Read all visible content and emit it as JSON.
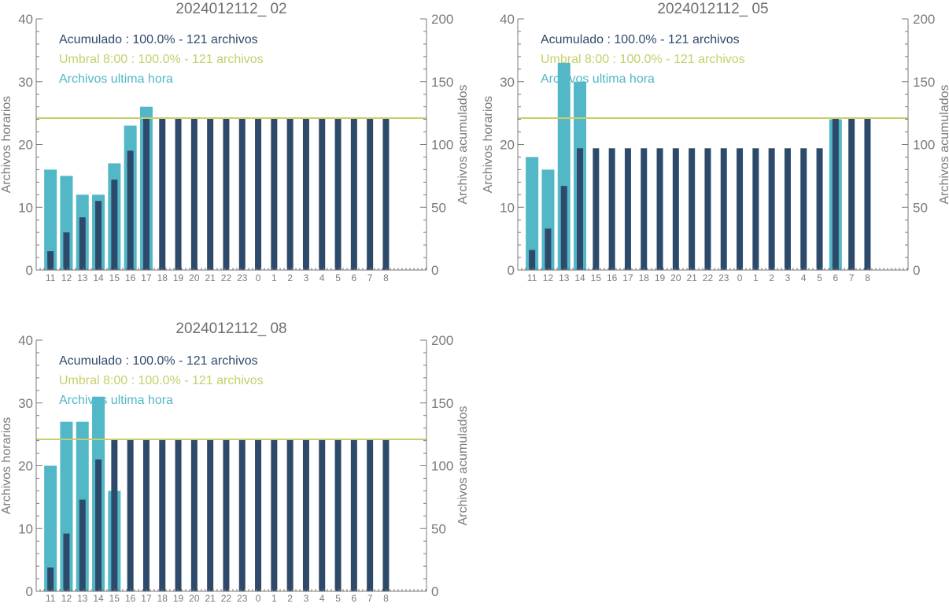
{
  "colors": {
    "accumulated": "#2e4a6b",
    "hourly": "#52b7c6",
    "threshold": "#c6cf6a",
    "axis": "#7a7a7a",
    "title": "#6f6f6f"
  },
  "legend_labels": {
    "accumulated": "Acumulado : 100.0% - 121 archivos",
    "threshold": "Umbral 8:00 : 100.0% - 121 archivos",
    "hourly": "Archivos ultima hora"
  },
  "axis_labels": {
    "left": "Archivos horarios",
    "right": "Archivos acumulados"
  },
  "chart_data": [
    {
      "type": "bar",
      "title": "2024012112_ 02",
      "categories": [
        "11",
        "12",
        "13",
        "14",
        "15",
        "16",
        "17",
        "18",
        "19",
        "20",
        "21",
        "22",
        "23",
        "0",
        "1",
        "2",
        "3",
        "4",
        "5",
        "6",
        "7",
        "8"
      ],
      "ylim_left": [
        0,
        40
      ],
      "ylim_right": [
        0,
        200
      ],
      "left_ticks": [
        "0",
        "10",
        "20",
        "30",
        "40"
      ],
      "right_ticks": [
        "0",
        "50",
        "100",
        "150",
        "200"
      ],
      "threshold": 121,
      "series": [
        {
          "name": "Archivos ultima hora",
          "axis": "left",
          "values": [
            16,
            15,
            12,
            12,
            17,
            23,
            26,
            0,
            0,
            0,
            0,
            0,
            0,
            0,
            0,
            0,
            0,
            0,
            0,
            0,
            0,
            0
          ]
        },
        {
          "name": "Acumulado",
          "axis": "right",
          "values": [
            15,
            30,
            42,
            55,
            72,
            95,
            121,
            121,
            121,
            121,
            121,
            121,
            121,
            121,
            121,
            121,
            121,
            121,
            121,
            121,
            121,
            121
          ]
        }
      ]
    },
    {
      "type": "bar",
      "title": "2024012112_ 05",
      "categories": [
        "11",
        "12",
        "13",
        "14",
        "15",
        "16",
        "17",
        "18",
        "19",
        "20",
        "21",
        "22",
        "23",
        "0",
        "1",
        "2",
        "3",
        "4",
        "5",
        "6",
        "7",
        "8"
      ],
      "ylim_left": [
        0,
        40
      ],
      "ylim_right": [
        0,
        200
      ],
      "left_ticks": [
        "0",
        "10",
        "20",
        "30",
        "40"
      ],
      "right_ticks": [
        "0",
        "50",
        "100",
        "150",
        "200"
      ],
      "threshold": 121,
      "series": [
        {
          "name": "Archivos ultima hora",
          "axis": "left",
          "values": [
            18,
            16,
            33,
            30,
            0,
            0,
            0,
            0,
            0,
            0,
            0,
            0,
            0,
            0,
            0,
            0,
            0,
            0,
            0,
            24,
            0,
            0
          ]
        },
        {
          "name": "Acumulado",
          "axis": "right",
          "values": [
            16,
            33,
            67,
            97,
            97,
            97,
            97,
            97,
            97,
            97,
            97,
            97,
            97,
            97,
            97,
            97,
            97,
            97,
            97,
            121,
            121,
            121
          ]
        }
      ]
    },
    {
      "type": "bar",
      "title": "2024012112_ 08",
      "categories": [
        "11",
        "12",
        "13",
        "14",
        "15",
        "16",
        "17",
        "18",
        "19",
        "20",
        "21",
        "22",
        "23",
        "0",
        "1",
        "2",
        "3",
        "4",
        "5",
        "6",
        "7",
        "8"
      ],
      "ylim_left": [
        0,
        40
      ],
      "ylim_right": [
        0,
        200
      ],
      "left_ticks": [
        "0",
        "10",
        "20",
        "30",
        "40"
      ],
      "right_ticks": [
        "0",
        "50",
        "100",
        "150",
        "200"
      ],
      "threshold": 121,
      "series": [
        {
          "name": "Archivos ultima hora",
          "axis": "left",
          "values": [
            20,
            27,
            27,
            31,
            16,
            0,
            0,
            0,
            0,
            0,
            0,
            0,
            0,
            0,
            0,
            0,
            0,
            0,
            0,
            0,
            0,
            0
          ]
        },
        {
          "name": "Acumulado",
          "axis": "right",
          "values": [
            19,
            46,
            73,
            105,
            121,
            121,
            121,
            121,
            121,
            121,
            121,
            121,
            121,
            121,
            121,
            121,
            121,
            121,
            121,
            121,
            121,
            121
          ]
        }
      ]
    }
  ]
}
